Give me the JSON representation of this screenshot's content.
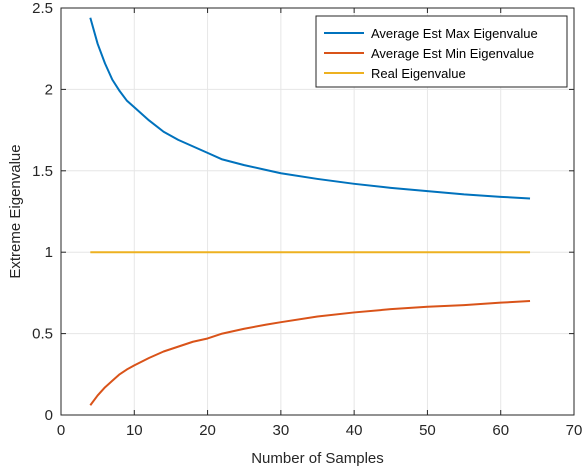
{
  "chart_data": {
    "type": "line",
    "title": "",
    "xlabel": "Number of Samples",
    "ylabel": "Extreme Eigenvalue",
    "xlim": [
      0,
      70
    ],
    "ylim": [
      0,
      2.5
    ],
    "xticks": [
      0,
      10,
      20,
      30,
      40,
      50,
      60,
      70
    ],
    "yticks": [
      0,
      0.5,
      1,
      1.5,
      2,
      2.5
    ],
    "xtick_labels": [
      "0",
      "10",
      "20",
      "30",
      "40",
      "50",
      "60",
      "70"
    ],
    "ytick_labels": [
      "0",
      "0.5",
      "1",
      "1.5",
      "2",
      "2.5"
    ],
    "grid": true,
    "legend_position": "top-right",
    "series": [
      {
        "name": "Average Est Max Eigenvalue",
        "color": "#0072BD",
        "x": [
          4,
          5,
          6,
          7,
          8,
          9,
          10,
          12,
          14,
          16,
          18,
          20,
          22,
          25,
          28,
          30,
          35,
          40,
          45,
          50,
          55,
          60,
          64
        ],
        "y": [
          2.44,
          2.28,
          2.16,
          2.06,
          1.99,
          1.93,
          1.89,
          1.81,
          1.74,
          1.69,
          1.65,
          1.61,
          1.57,
          1.535,
          1.505,
          1.485,
          1.45,
          1.42,
          1.395,
          1.375,
          1.355,
          1.34,
          1.33
        ]
      },
      {
        "name": "Average Est Min Eigenvalue",
        "color": "#D95319",
        "x": [
          4,
          5,
          6,
          7,
          8,
          9,
          10,
          12,
          14,
          16,
          18,
          20,
          22,
          25,
          28,
          30,
          35,
          40,
          45,
          50,
          55,
          60,
          64
        ],
        "y": [
          0.06,
          0.12,
          0.17,
          0.21,
          0.25,
          0.28,
          0.305,
          0.35,
          0.39,
          0.42,
          0.45,
          0.47,
          0.5,
          0.53,
          0.555,
          0.57,
          0.605,
          0.63,
          0.65,
          0.665,
          0.675,
          0.69,
          0.7
        ]
      },
      {
        "name": "Real Eigenvalue",
        "color": "#EDB120",
        "x": [
          4,
          64
        ],
        "y": [
          1,
          1
        ]
      }
    ]
  }
}
